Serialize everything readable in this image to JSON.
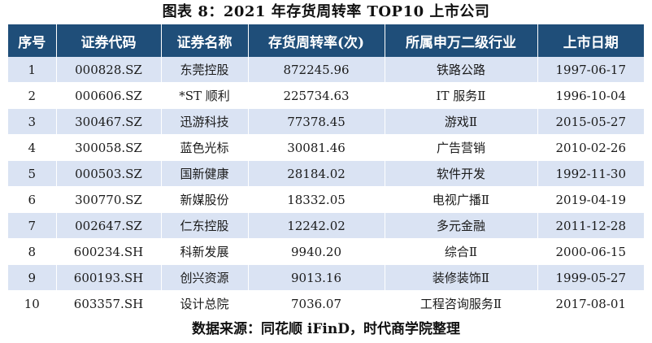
{
  "caption": "图表 8：2021 年存货周转率 TOP10 上市公司",
  "table": {
    "headers": [
      "序号",
      "证券代码",
      "证券名称",
      "存货周转率(次)",
      "所属申万二级行业",
      "上市日期"
    ],
    "rows": [
      [
        "1",
        "000828.SZ",
        "东莞控股",
        "872245.96",
        "铁路公路",
        "1997-06-17"
      ],
      [
        "2",
        "000606.SZ",
        "*ST 顺利",
        "225734.63",
        "IT 服务Ⅱ",
        "1996-10-04"
      ],
      [
        "3",
        "300467.SZ",
        "迅游科技",
        "77378.45",
        "游戏Ⅱ",
        "2015-05-27"
      ],
      [
        "4",
        "300058.SZ",
        "蓝色光标",
        "30081.46",
        "广告营销",
        "2010-02-26"
      ],
      [
        "5",
        "000503.SZ",
        "国新健康",
        "28184.02",
        "软件开发",
        "1992-11-30"
      ],
      [
        "6",
        "300770.SZ",
        "新媒股份",
        "18332.05",
        "电视广播Ⅱ",
        "2019-04-19"
      ],
      [
        "7",
        "002647.SZ",
        "仁东控股",
        "12242.02",
        "多元金融",
        "2011-12-28"
      ],
      [
        "8",
        "600234.SH",
        "科新发展",
        "9940.20",
        "综合Ⅱ",
        "2000-06-15"
      ],
      [
        "9",
        "600193.SH",
        "创兴资源",
        "9013.16",
        "装修装饰Ⅱ",
        "1999-05-27"
      ],
      [
        "10",
        "603357.SH",
        "设计总院",
        "7036.07",
        "工程咨询服务Ⅱ",
        "2017-08-01"
      ]
    ]
  },
  "source": "数据来源：同花顺 iFinD，时代商学院整理",
  "colors": {
    "header_bg": "#1f4e79",
    "header_text": "#ffffff",
    "stripe_bg": "#dae3f3"
  }
}
